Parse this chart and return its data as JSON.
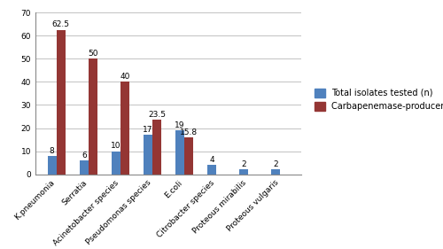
{
  "categories": [
    "K.pneumonia",
    "Serratia",
    "Acinetobacter species",
    "Pseudomonas species",
    "E.coli",
    "Citrobacter species",
    "Proteous mirabilis",
    "Proteous vulgaris"
  ],
  "total_isolates": [
    8,
    6,
    10,
    17,
    19,
    4,
    2,
    2
  ],
  "carbapenemase_pct": [
    62.5,
    50,
    40,
    23.5,
    15.8,
    0,
    0,
    0
  ],
  "bar_color_blue": "#4F81BD",
  "bar_color_red": "#943634",
  "ylim": [
    0,
    70
  ],
  "yticks": [
    0,
    10,
    20,
    30,
    40,
    50,
    60,
    70
  ],
  "legend_blue": "Total isolates tested (n)",
  "legend_red": "Carbapenemase-producers (%)",
  "bar_width": 0.28,
  "tick_fontsize": 6.5,
  "annotation_fontsize": 6.5,
  "legend_fontsize": 7,
  "bg_color": "#FFFFFF"
}
